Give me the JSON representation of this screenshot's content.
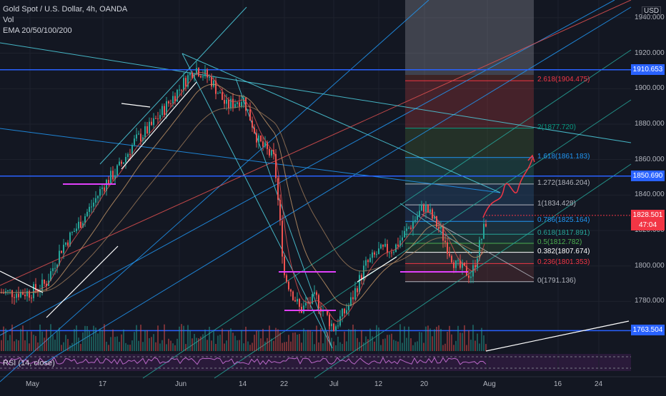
{
  "header": {
    "symbol_line": "Gold Spot / U.S. Dollar, 4h, OANDA",
    "vol_label": "Vol",
    "ema_label": "EMA 20/50/100/200",
    "currency": "USD"
  },
  "rsi": {
    "label": "RSI (14, close)"
  },
  "chart_data": {
    "type": "candlestick",
    "title": "Gold Spot / U.S. Dollar, 4h, OANDA",
    "currency": "USD",
    "ylim": [
      1752,
      1950
    ],
    "y_ticks": [
      "1940.000",
      "1920.000",
      "1900.000",
      "1880.000",
      "1860.000",
      "1840.000",
      "1820.000",
      "1800.000",
      "1780.000",
      "1763.504"
    ],
    "y_tick_values": [
      1940,
      1920,
      1900,
      1880,
      1860,
      1840,
      1820,
      1800,
      1780
    ],
    "x_ticks": [
      "May",
      "17",
      "Jun",
      "14",
      "22",
      "Jul",
      "12",
      "20",
      "Aug",
      "16",
      "24"
    ],
    "price_path": [
      [
        "May",
        1785
      ],
      [
        "May",
        1790
      ],
      [
        "May",
        1810
      ],
      [
        "May",
        1822
      ],
      [
        "May",
        1835
      ],
      [
        "17",
        1845
      ],
      [
        "17",
        1855
      ],
      [
        "17",
        1870
      ],
      [
        "17",
        1878
      ],
      [
        "Jun",
        1900
      ],
      [
        "Jun",
        1912
      ],
      [
        "Jun",
        1905
      ],
      [
        "Jun",
        1890
      ],
      [
        "14",
        1895
      ],
      [
        "14",
        1870
      ],
      [
        "14",
        1860
      ],
      [
        "22",
        1795
      ],
      [
        "22",
        1775
      ],
      [
        "22",
        1782
      ],
      [
        "Jul",
        1765
      ],
      [
        "Jul",
        1778
      ],
      [
        "Jul",
        1800
      ],
      [
        "12",
        1808
      ],
      [
        "12",
        1810
      ],
      [
        "20",
        1834
      ],
      [
        "20",
        1820
      ],
      [
        "20",
        1800
      ],
      [
        "20",
        1795
      ],
      [
        "Aug",
        1828
      ]
    ],
    "current_price": "1828.501",
    "countdown": "47:04",
    "horizontal_levels": [
      {
        "label": "1910.653",
        "value": 1910.653,
        "color": "#2962ff"
      },
      {
        "label": "1850.690",
        "value": 1850.69,
        "color": "#2962ff"
      },
      {
        "label": "1763.504",
        "value": 1763.504,
        "color": "#2962ff"
      }
    ],
    "fibonacci": [
      {
        "label": "2.618(1904.475)",
        "value": 1904.475,
        "color": "#f23645"
      },
      {
        "label": "2(1877.720)",
        "value": 1877.72,
        "color": "#089981"
      },
      {
        "label": "1.618(1861.183)",
        "value": 1861.183,
        "color": "#2196f3"
      },
      {
        "label": "1.272(1846.204)",
        "value": 1846.204,
        "color": "#b2b5be"
      },
      {
        "label": "1(1834.428)",
        "value": 1834.428,
        "color": "#b2b5be"
      },
      {
        "label": "0.786(1825.164)",
        "value": 1825.164,
        "color": "#2196f3"
      },
      {
        "label": "0.618(1817.891)",
        "value": 1817.891,
        "color": "#26a69a"
      },
      {
        "label": "0.5(1812.782)",
        "value": 1812.782,
        "color": "#4caf50"
      },
      {
        "label": "0.382(1807.674)",
        "value": 1807.674,
        "color": "#ffffff"
      },
      {
        "label": "0.236(1801.353)",
        "value": 1801.353,
        "color": "#f23645"
      },
      {
        "label": "0(1791.136)",
        "value": 1791.136,
        "color": "#b2b5be"
      }
    ],
    "colors": {
      "up": "#26a69a",
      "down": "#ef5350",
      "background": "#131722",
      "level": "#2962ff"
    }
  }
}
